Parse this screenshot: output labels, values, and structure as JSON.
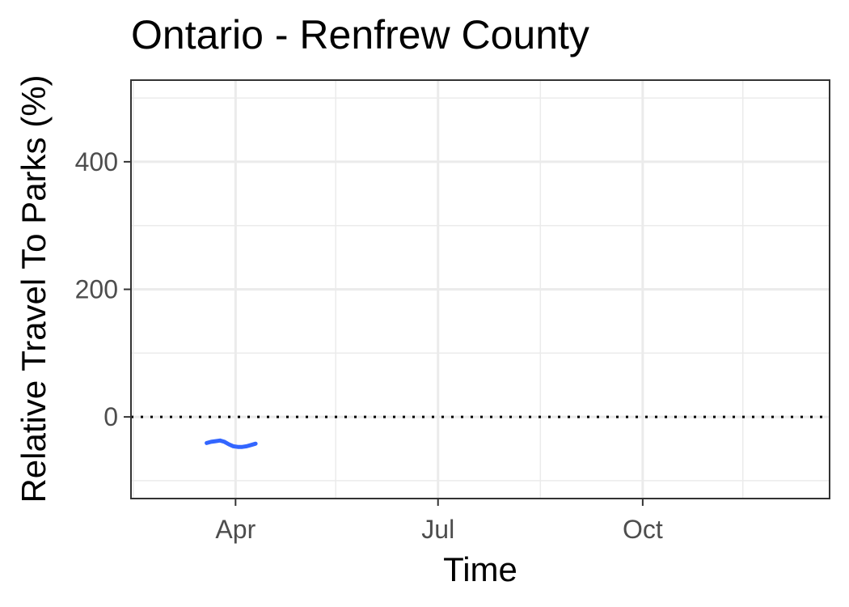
{
  "chart_data": {
    "type": "line",
    "title": "Ontario - Renfrew County",
    "xlabel": "Time",
    "ylabel": "Relative Travel To Parks (%)",
    "x_axis": {
      "type": "date",
      "range": [
        "2020-02-14",
        "2020-12-24"
      ],
      "ticks": [
        {
          "date": "2020-04-01",
          "label": "Apr"
        },
        {
          "date": "2020-07-01",
          "label": "Jul"
        },
        {
          "date": "2020-10-01",
          "label": "Oct"
        }
      ],
      "minor_ticks": [
        "2020-02-15",
        "2020-05-16",
        "2020-08-16",
        "2020-11-15"
      ]
    },
    "y_axis": {
      "range": [
        -128,
        528
      ],
      "ticks": [
        0,
        200,
        400
      ],
      "minor_ticks": [
        -100,
        100,
        300,
        500
      ]
    },
    "reference_line": {
      "y": 0,
      "style": "dotted",
      "color": "#000000"
    },
    "grid": true,
    "series": [
      {
        "color": "#3366ff",
        "points": [
          {
            "x": "2020-03-19",
            "y": -41
          },
          {
            "x": "2020-03-21",
            "y": -39
          },
          {
            "x": "2020-03-23",
            "y": -38
          },
          {
            "x": "2020-03-25",
            "y": -37
          },
          {
            "x": "2020-03-27",
            "y": -39
          },
          {
            "x": "2020-03-29",
            "y": -43
          },
          {
            "x": "2020-03-31",
            "y": -46
          },
          {
            "x": "2020-04-02",
            "y": -47
          },
          {
            "x": "2020-04-04",
            "y": -47
          },
          {
            "x": "2020-04-06",
            "y": -46
          },
          {
            "x": "2020-04-08",
            "y": -44
          },
          {
            "x": "2020-04-10",
            "y": -42
          }
        ]
      }
    ]
  }
}
